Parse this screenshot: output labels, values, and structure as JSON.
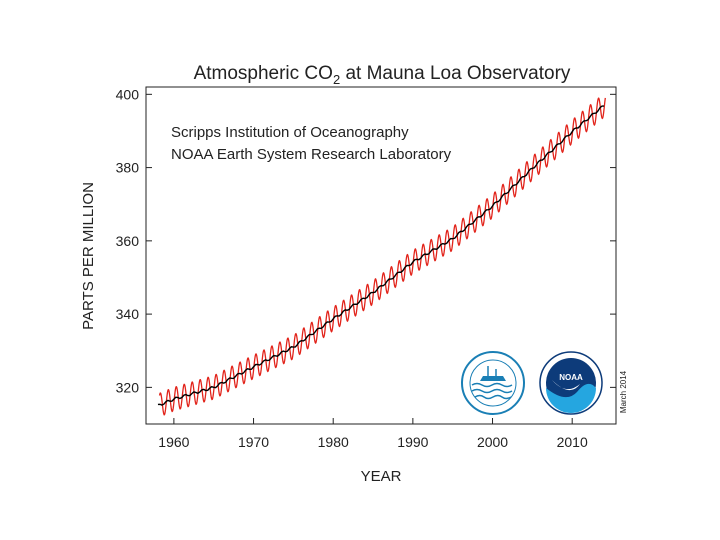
{
  "chart_data": {
    "type": "line",
    "title_prefix": "Atmospheric CO",
    "title_sub": "2",
    "title_suffix": " at Mauna Loa Observatory",
    "xlabel": "YEAR",
    "ylabel": "PARTS PER MILLION",
    "xlim": [
      1956.5,
      2015.5
    ],
    "ylim": [
      310,
      402
    ],
    "x_ticks": [
      1960,
      1970,
      1980,
      1990,
      2000,
      2010
    ],
    "y_ticks": [
      320,
      340,
      360,
      380,
      400
    ],
    "annotations": [
      "Scripps Institution of Oceanography",
      "NOAA Earth System Research Laboratory"
    ],
    "date_note": "March 2014",
    "grid": false,
    "series": [
      {
        "kind": "monthly",
        "color": "#e2231a",
        "x_range": [
          1958.2,
          2014.2
        ],
        "seasonal_amplitude_ppm": 3.2
      },
      {
        "kind": "trend",
        "color": "#000000",
        "x": [
          1958,
          1960,
          1965,
          1970,
          1975,
          1980,
          1985,
          1990,
          1995,
          2000,
          2005,
          2010,
          2014
        ],
        "values": [
          315.0,
          316.8,
          320.0,
          325.6,
          331.0,
          338.7,
          345.9,
          354.2,
          360.6,
          369.5,
          379.8,
          389.8,
          397.0
        ]
      }
    ]
  },
  "logos": [
    {
      "name": "scripps-seal",
      "color": "#1a7fb5"
    },
    {
      "name": "noaa-logo",
      "color": "#0d3b7a"
    }
  ]
}
